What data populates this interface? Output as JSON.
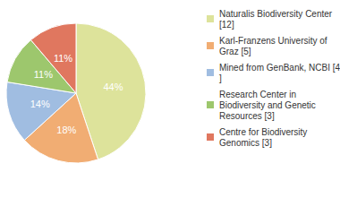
{
  "chart_data": {
    "type": "pie",
    "categories": [
      "Naturalis Biodiversity Center [12]",
      "Karl-Franzens University of Graz [5]",
      "Mined from GenBank, NCBI [4]",
      "Research Center in Biodiversity and Genetic Resources [3]",
      "Centre for Biodiversity Genomics [3]"
    ],
    "values": [
      44,
      18,
      14,
      11,
      11
    ],
    "value_labels": [
      "44%",
      "18%",
      "14%",
      "11%",
      "11%"
    ],
    "colors": [
      "#dde39b",
      "#f1ad73",
      "#a0bde1",
      "#9dc76d",
      "#e0775f"
    ],
    "data_labels": true,
    "legend": "right"
  }
}
